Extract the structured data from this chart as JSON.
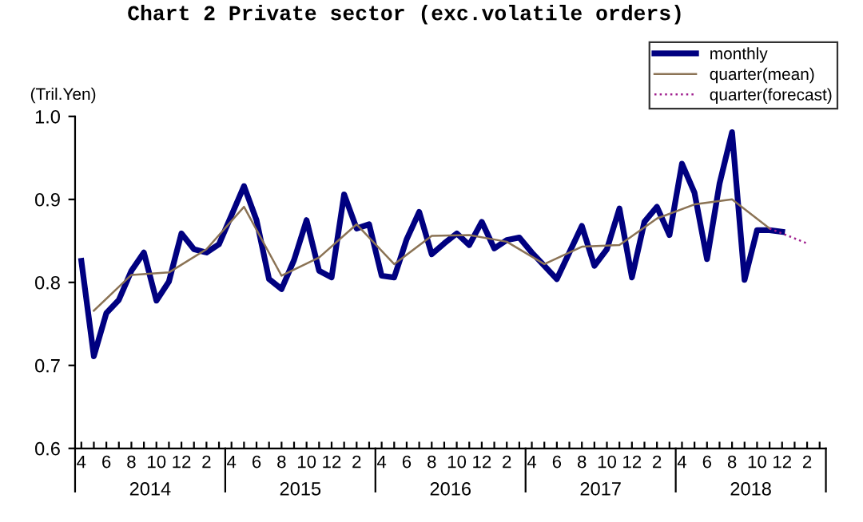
{
  "chart_data": {
    "type": "line",
    "title": "Chart 2 Private sector (exc.volatile orders)",
    "ylabel": "(Tril.Yen)",
    "categories": [
      "4",
      null,
      "6",
      null,
      "8",
      null,
      "10",
      null,
      "12",
      null,
      "2",
      null,
      "4",
      null,
      "6",
      null,
      "8",
      null,
      "10",
      null,
      "12",
      null,
      "2",
      null,
      "4",
      null,
      "6",
      null,
      "8",
      null,
      "10",
      null,
      "12",
      null,
      "2",
      null,
      "4",
      null,
      "6",
      null,
      "8",
      null,
      "10",
      null,
      "12",
      null,
      "2",
      null,
      "4",
      null,
      "6",
      null,
      "8",
      null,
      "10",
      null,
      "12",
      null,
      "2",
      null
    ],
    "annotations": [
      "2014",
      "2015",
      "2016",
      "2017",
      "2018"
    ],
    "series": [
      {
        "name": "monthly",
        "color": "#000080",
        "line_style": "solid",
        "values": [
          0.826,
          0.711,
          0.763,
          0.779,
          0.814,
          0.836,
          0.778,
          0.801,
          0.859,
          0.84,
          0.836,
          0.846,
          0.881,
          0.916,
          0.875,
          0.804,
          0.792,
          0.827,
          0.875,
          0.814,
          0.806,
          0.906,
          0.865,
          0.87,
          0.808,
          0.806,
          0.852,
          0.885,
          0.834,
          0.847,
          0.859,
          0.845,
          0.873,
          0.841,
          0.851,
          0.854,
          0.836,
          0.82,
          0.804,
          0.836,
          0.868,
          0.82,
          0.84,
          0.889,
          0.806,
          0.873,
          0.891,
          0.857,
          0.943,
          0.908,
          0.828,
          0.919,
          0.981,
          0.803,
          0.863,
          0.863,
          0.861,
          null,
          null,
          null
        ]
      },
      {
        "name": "quarter(mean)",
        "color": "#8b7355",
        "line_style": "solid",
        "values": [
          null,
          0.766,
          null,
          null,
          0.809,
          null,
          null,
          0.812,
          null,
          null,
          0.84,
          null,
          null,
          0.891,
          null,
          null,
          0.808,
          null,
          null,
          0.83,
          null,
          null,
          0.87,
          null,
          null,
          0.822,
          null,
          null,
          0.856,
          null,
          null,
          0.857,
          null,
          null,
          0.849,
          null,
          null,
          0.822,
          null,
          null,
          0.843,
          null,
          null,
          0.845,
          null,
          null,
          0.877,
          null,
          null,
          0.894,
          null,
          null,
          0.9,
          null,
          null,
          0.865,
          null,
          null,
          null,
          null
        ]
      },
      {
        "name": "quarter(forecast)",
        "color": "#a0208f",
        "line_style": "dotted",
        "values": [
          null,
          null,
          null,
          null,
          null,
          null,
          null,
          null,
          null,
          null,
          null,
          null,
          null,
          null,
          null,
          null,
          null,
          null,
          null,
          null,
          null,
          null,
          null,
          null,
          null,
          null,
          null,
          null,
          null,
          null,
          null,
          null,
          null,
          null,
          null,
          null,
          null,
          null,
          null,
          null,
          null,
          null,
          null,
          null,
          null,
          null,
          null,
          null,
          null,
          null,
          null,
          null,
          null,
          null,
          null,
          0.865,
          null,
          null,
          0.847,
          null
        ]
      }
    ],
    "ylim": [
      0.6,
      1.0
    ],
    "yticks": [
      0.6,
      0.7,
      0.8,
      0.9,
      {
        "value": 1.0,
        "label": "1.0"
      }
    ],
    "grid": false,
    "legend": "top right"
  }
}
